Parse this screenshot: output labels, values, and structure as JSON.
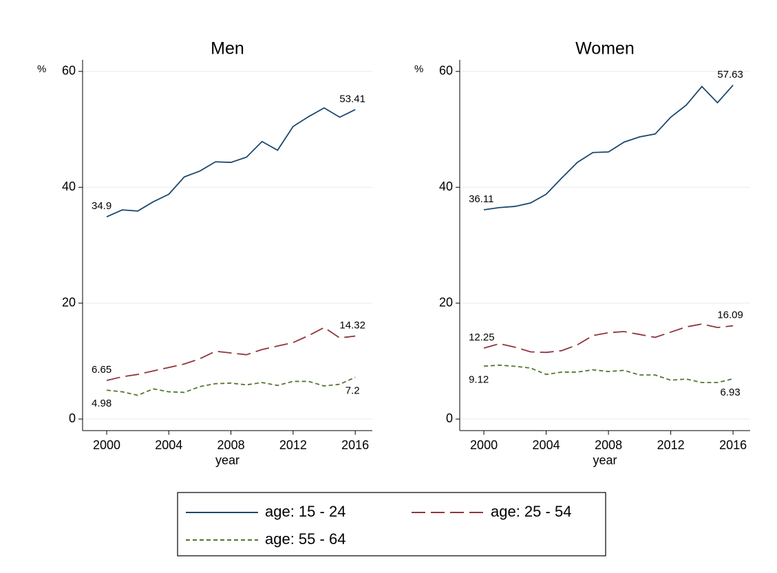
{
  "chart_data": [
    {
      "type": "line",
      "title": "Men",
      "y_label": "%",
      "x_label": "year",
      "x": [
        2000,
        2001,
        2002,
        2003,
        2004,
        2005,
        2006,
        2007,
        2008,
        2009,
        2010,
        2011,
        2012,
        2013,
        2014,
        2015,
        2016
      ],
      "xlim": [
        1998.45,
        2017.1
      ],
      "xticks": [
        2000,
        2004,
        2008,
        2012,
        2016
      ],
      "ylim": [
        -2,
        62
      ],
      "yticks": [
        0,
        20,
        40,
        60
      ],
      "grid": true,
      "series": [
        {
          "name": "age: 15 - 24",
          "color": "#1a476f",
          "dash": "solid",
          "values": [
            34.9,
            36.1,
            35.9,
            37.5,
            38.8,
            41.8,
            42.8,
            44.4,
            44.3,
            45.2,
            47.9,
            46.4,
            50.5,
            52.2,
            53.7,
            52.1,
            53.41
          ],
          "value_labels": [
            "34.9",
            null,
            null,
            null,
            null,
            null,
            null,
            null,
            null,
            null,
            null,
            null,
            null,
            null,
            null,
            null,
            "53.41"
          ]
        },
        {
          "name": "age: 25 - 54",
          "color": "#90353b",
          "dash": "long",
          "values": [
            6.65,
            7.3,
            7.7,
            8.3,
            8.9,
            9.5,
            10.4,
            11.7,
            11.4,
            11.1,
            12.0,
            12.6,
            13.2,
            14.4,
            15.8,
            14.0,
            14.32
          ],
          "value_labels": [
            "6.65",
            null,
            null,
            null,
            null,
            null,
            null,
            null,
            null,
            null,
            null,
            null,
            null,
            null,
            null,
            null,
            "14.32"
          ]
        },
        {
          "name": "age: 55 - 64",
          "color": "#55752f",
          "dash": "short",
          "values": [
            4.98,
            4.7,
            4.1,
            5.2,
            4.7,
            4.6,
            5.6,
            6.1,
            6.2,
            5.9,
            6.3,
            5.8,
            6.5,
            6.5,
            5.7,
            6.0,
            7.2
          ],
          "value_labels": [
            "4.98",
            null,
            null,
            null,
            null,
            null,
            null,
            null,
            null,
            null,
            null,
            null,
            null,
            null,
            null,
            null,
            "7.2"
          ]
        }
      ]
    },
    {
      "type": "line",
      "title": "Women",
      "y_label": "%",
      "x_label": "year",
      "x": [
        2000,
        2001,
        2002,
        2003,
        2004,
        2005,
        2006,
        2007,
        2008,
        2009,
        2010,
        2011,
        2012,
        2013,
        2014,
        2015,
        2016
      ],
      "xlim": [
        1998.45,
        2017.1
      ],
      "xticks": [
        2000,
        2004,
        2008,
        2012,
        2016
      ],
      "ylim": [
        -2,
        62
      ],
      "yticks": [
        0,
        20,
        40,
        60
      ],
      "grid": true,
      "series": [
        {
          "name": "age: 15 - 24",
          "color": "#1a476f",
          "dash": "solid",
          "values": [
            36.11,
            36.5,
            36.7,
            37.3,
            38.8,
            41.6,
            44.3,
            46.0,
            46.1,
            47.8,
            48.7,
            49.2,
            52.1,
            54.2,
            57.4,
            54.6,
            57.63
          ],
          "value_labels": [
            "36.11",
            null,
            null,
            null,
            null,
            null,
            null,
            null,
            null,
            null,
            null,
            null,
            null,
            null,
            null,
            null,
            "57.63"
          ]
        },
        {
          "name": "age: 25 - 54",
          "color": "#90353b",
          "dash": "long",
          "values": [
            12.25,
            13.0,
            12.4,
            11.6,
            11.5,
            11.8,
            12.8,
            14.4,
            14.9,
            15.1,
            14.6,
            14.1,
            15.0,
            15.9,
            16.4,
            15.8,
            16.09
          ],
          "value_labels": [
            "12.25",
            null,
            null,
            null,
            null,
            null,
            null,
            null,
            null,
            null,
            null,
            null,
            null,
            null,
            null,
            null,
            "16.09"
          ]
        },
        {
          "name": "age: 55 - 64",
          "color": "#55752f",
          "dash": "short",
          "values": [
            9.12,
            9.3,
            9.1,
            8.8,
            7.7,
            8.1,
            8.1,
            8.5,
            8.2,
            8.4,
            7.6,
            7.6,
            6.7,
            6.9,
            6.3,
            6.3,
            6.93
          ],
          "value_labels": [
            "9.12",
            null,
            null,
            null,
            null,
            null,
            null,
            null,
            null,
            null,
            null,
            null,
            null,
            null,
            null,
            null,
            "6.93"
          ]
        }
      ]
    }
  ]
}
